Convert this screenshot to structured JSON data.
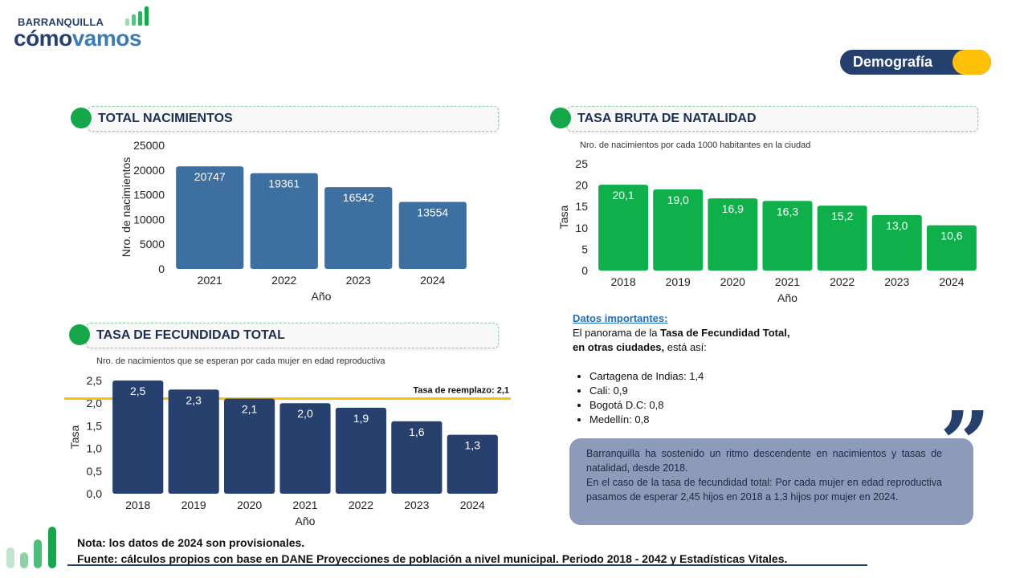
{
  "logo": {
    "top": "BARRANQUILLA",
    "main_a": "cómo",
    "main_b": "vamos"
  },
  "badge": "Demografía",
  "colors": {
    "blue_bar": "#3d6fa0",
    "green_bar": "#0fb04c",
    "navy_bar": "#27406e",
    "accent_yellow": "#ffc107"
  },
  "sections": {
    "nacimientos": "TOTAL NACIMIENTOS",
    "natalidad": "TASA BRUTA DE NATALIDAD",
    "fecundidad": "TASA DE FECUNDIDAD TOTAL"
  },
  "notes": {
    "natalidad": "Nro. de nacimientos por cada 1000 habitantes en la ciudad",
    "fecundidad": "Nro. de nacimientos que se esperan por cada mujer en edad reproductiva"
  },
  "chart_data": [
    {
      "type": "bar",
      "title": "TOTAL NACIMIENTOS",
      "categories": [
        "2021",
        "2022",
        "2023",
        "2024"
      ],
      "values": [
        20747,
        19361,
        16542,
        13554
      ],
      "value_labels": [
        "20747",
        "19361",
        "16542",
        "13554"
      ],
      "xlabel": "Año",
      "ylabel": "Nro. de nacimientos",
      "ylim": [
        0,
        25000
      ],
      "yticks": [
        "0",
        "5000",
        "10000",
        "15000",
        "20000",
        "25000"
      ],
      "grid": false
    },
    {
      "type": "bar",
      "title": "TASA BRUTA DE NATALIDAD",
      "categories": [
        "2018",
        "2019",
        "2020",
        "2021",
        "2022",
        "2023",
        "2024"
      ],
      "values": [
        20.1,
        19.0,
        16.9,
        16.3,
        15.2,
        13.0,
        10.6
      ],
      "value_labels": [
        "20,1",
        "19,0",
        "16,9",
        "16,3",
        "15,2",
        "13,0",
        "10,6"
      ],
      "xlabel": "Año",
      "ylabel": "Tasa",
      "ylim": [
        0,
        25
      ],
      "yticks": [
        "0",
        "5",
        "10",
        "15",
        "20",
        "25"
      ],
      "grid": false
    },
    {
      "type": "bar",
      "title": "TASA DE FECUNDIDAD TOTAL",
      "categories": [
        "2018",
        "2019",
        "2020",
        "2021",
        "2022",
        "2023",
        "2024"
      ],
      "values": [
        2.5,
        2.3,
        2.1,
        2.0,
        1.9,
        1.6,
        1.3
      ],
      "value_labels": [
        "2,5",
        "2,3",
        "2,1",
        "2,0",
        "1,9",
        "1,6",
        "1,3"
      ],
      "xlabel": "Año",
      "ylabel": "Tasa",
      "ylim": [
        0,
        2.5
      ],
      "yticks": [
        "0,0",
        "0,5",
        "1,0",
        "1,5",
        "2,0",
        "2,5"
      ],
      "reference_line": {
        "value": 2.1,
        "label": "Tasa de reemplazo: 2,1"
      },
      "grid": false
    }
  ],
  "important": {
    "title": "Datos importantes:",
    "intro_a": "El panorama de la ",
    "intro_b": "Tasa de Fecundidad Total,",
    "intro_c": "en otras ciudades,",
    "intro_d": " está así:",
    "items": [
      "Cartagena de Indias: 1,4",
      "Cali: 0,9",
      "Bogotá D.C: 0,8",
      "Medellín: 0,8"
    ]
  },
  "quote": {
    "p1": "Barranquilla ha sostenido un ritmo descendente en nacimientos y tasas de natalidad, desde 2018.",
    "p2": "En el caso de la tasa de fecundidad total: Por cada mujer en edad reproductiva pasamos de esperar 2,45 hijos en 2018 a 1,3 hijos por mujer en 2024."
  },
  "footer": {
    "note": "Nota: los datos de 2024 son provisionales.",
    "source": "Fuente: cálculos propios con base en DANE Proyecciones de población a nivel municipal. Periodo 2018 - 2042 y Estadísticas Vitales."
  }
}
